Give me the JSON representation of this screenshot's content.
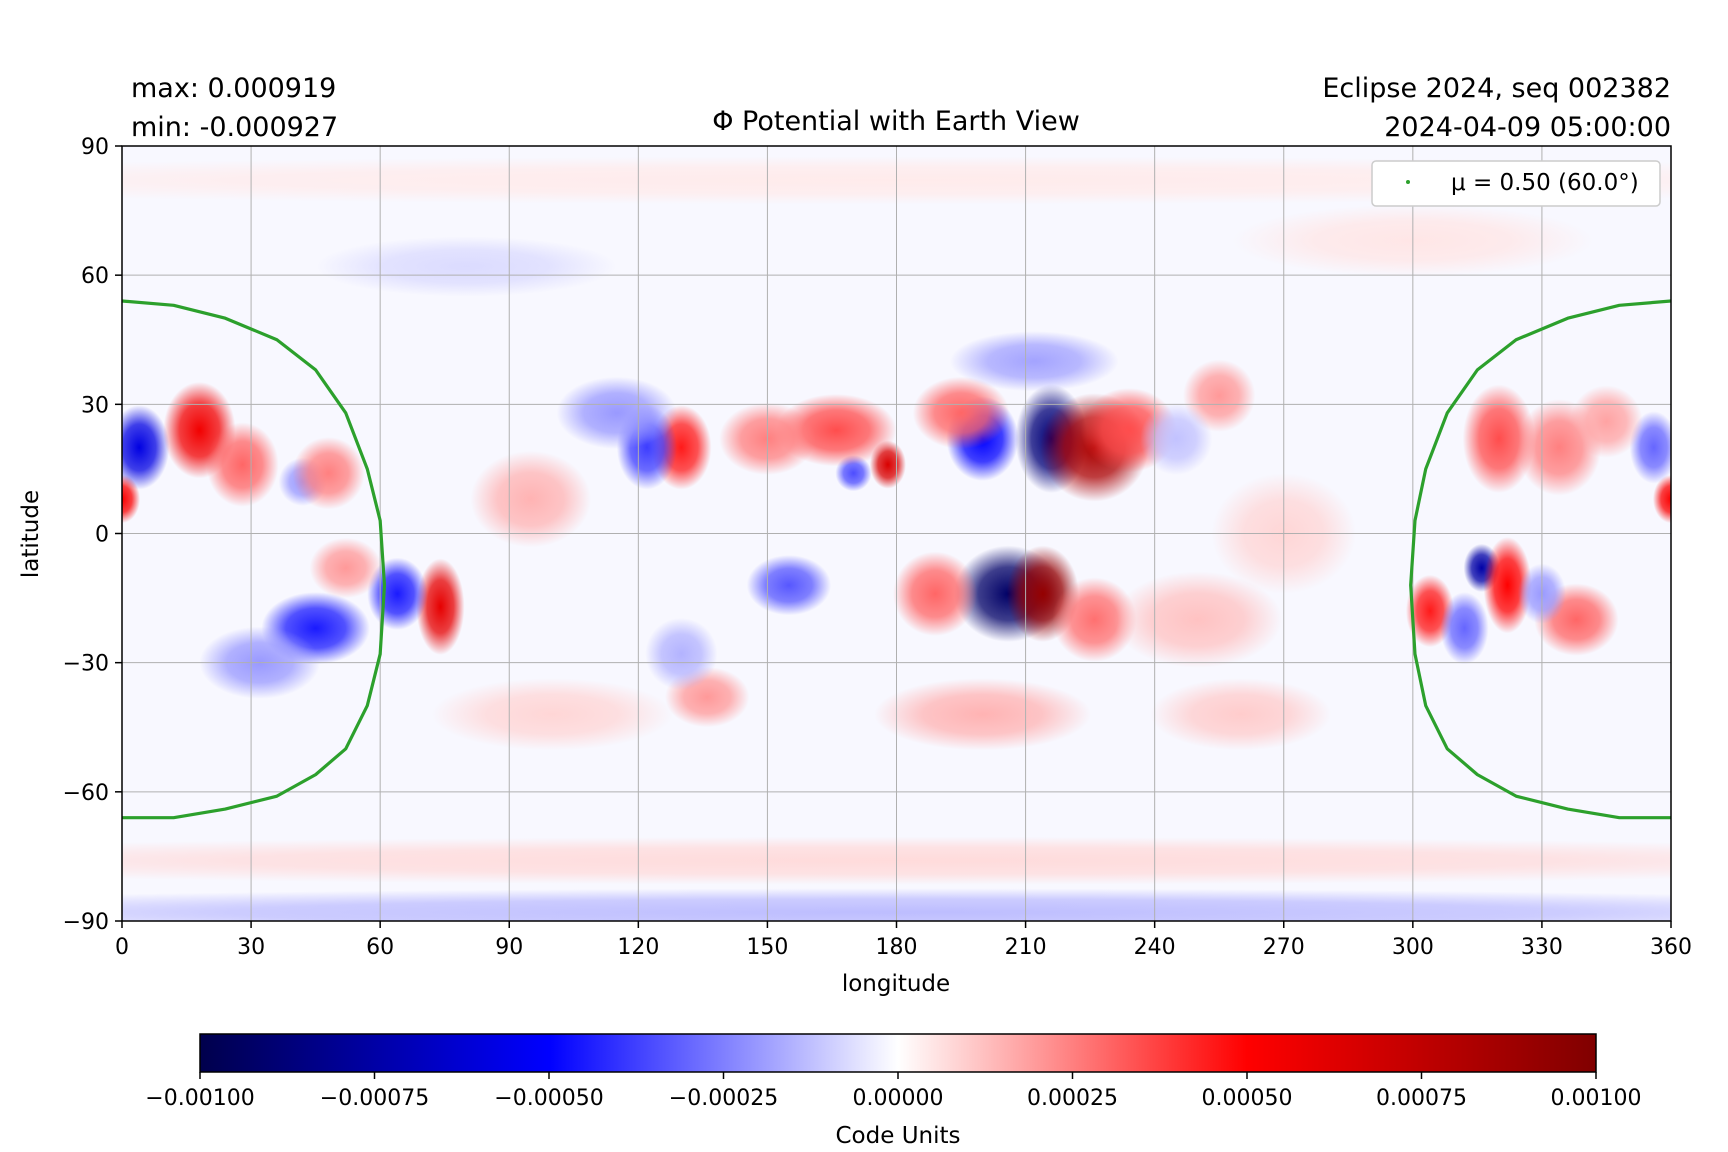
{
  "header": {
    "max_label": "max:  0.000919",
    "min_label": "min:  -0.000927",
    "title": "Φ Potential with Earth View",
    "run_label": "Eclipse 2024, seq 002382",
    "timestamp": "2024-04-09 05:00:00"
  },
  "chart_data": {
    "type": "heatmap",
    "title": "Φ Potential with Earth View",
    "xlabel": "longitude",
    "ylabel": "latitude",
    "xlim": [
      0,
      360
    ],
    "ylim": [
      -90,
      90
    ],
    "xticks": [
      0,
      30,
      60,
      90,
      120,
      150,
      180,
      210,
      240,
      270,
      300,
      330,
      360
    ],
    "yticks": [
      90,
      60,
      30,
      0,
      -30,
      -60,
      -90
    ],
    "ytick_labels": [
      "90",
      "60",
      "30",
      "0",
      "−30",
      "−60",
      "−90"
    ],
    "grid": true,
    "colormap": "seismic",
    "value_range": [
      -0.001,
      0.001
    ],
    "stats": {
      "max": 0.000919,
      "min": -0.000927
    },
    "colorbar": {
      "label": "Code Units",
      "ticks": [
        -0.001,
        -0.00075,
        -0.0005,
        -0.00025,
        0.0,
        0.00025,
        0.0005,
        0.00075,
        0.001
      ],
      "tick_labels": [
        "−0.00100",
        "−0.00075",
        "−0.00050",
        "−0.00025",
        "0.00000",
        "0.00025",
        "0.00050",
        "0.00075",
        "0.00100"
      ]
    },
    "legend": {
      "placement": "top-right",
      "entries": [
        {
          "label": "μ = 0.50 (60.0°)",
          "color": "#2ca02c"
        }
      ]
    },
    "overlay_curves": [
      {
        "name": "μ = 0.50 (60.0°)",
        "color": "#2ca02c",
        "segments": [
          {
            "lon": [
              0,
              12,
              24,
              36,
              45,
              52,
              57,
              60,
              61,
              60,
              57,
              52,
              45,
              36,
              24,
              12,
              0
            ],
            "lat": [
              54,
              53,
              50,
              45,
              38,
              28,
              15,
              3,
              -12,
              -28,
              -40,
              -50,
              -56,
              -61,
              -64,
              -66,
              -66
            ]
          },
          {
            "lon": [
              360,
              348,
              336,
              324,
              315,
              308,
              303,
              300.5,
              299.5,
              300.5,
              303,
              308,
              315,
              324,
              336,
              348,
              360
            ],
            "lat": [
              54,
              53,
              50,
              45,
              38,
              28,
              15,
              3,
              -12,
              -28,
              -40,
              -50,
              -56,
              -61,
              -64,
              -66,
              -66
            ]
          }
        ]
      }
    ],
    "features": [
      {
        "lon": 206,
        "lat": -14,
        "value": -0.000927,
        "sx": 9,
        "sy": 8
      },
      {
        "lon": 214,
        "lat": -14,
        "value": 0.000919,
        "sx": 6,
        "sy": 8
      },
      {
        "lon": 216,
        "lat": 22,
        "value": -0.00088,
        "sx": 6,
        "sy": 9
      },
      {
        "lon": 226,
        "lat": 20,
        "value": 0.00083,
        "sx": 9,
        "sy": 9
      },
      {
        "lon": 200,
        "lat": 22,
        "value": -0.0005,
        "sx": 6,
        "sy": 7
      },
      {
        "lon": 234,
        "lat": 24,
        "value": 0.00035,
        "sx": 8,
        "sy": 7
      },
      {
        "lon": 189,
        "lat": -14,
        "value": 0.0003,
        "sx": 7,
        "sy": 7
      },
      {
        "lon": 226,
        "lat": -20,
        "value": 0.00028,
        "sx": 7,
        "sy": 7
      },
      {
        "lon": 195,
        "lat": 28,
        "value": 0.0003,
        "sx": 8,
        "sy": 6
      },
      {
        "lon": 178,
        "lat": 16,
        "value": 0.00065,
        "sx": 3,
        "sy": 4
      },
      {
        "lon": 170,
        "lat": 14,
        "value": -0.00035,
        "sx": 3,
        "sy": 3
      },
      {
        "lon": 166,
        "lat": 24,
        "value": 0.00035,
        "sx": 10,
        "sy": 6
      },
      {
        "lon": 150,
        "lat": 22,
        "value": 0.00025,
        "sx": 8,
        "sy": 6
      },
      {
        "lon": 130,
        "lat": 20,
        "value": 0.00045,
        "sx": 5,
        "sy": 7
      },
      {
        "lon": 122,
        "lat": 20,
        "value": -0.00038,
        "sx": 5,
        "sy": 7
      },
      {
        "lon": 155,
        "lat": -12,
        "value": -0.00033,
        "sx": 7,
        "sy": 5
      },
      {
        "lon": 136,
        "lat": -38,
        "value": 0.0002,
        "sx": 7,
        "sy": 5
      },
      {
        "lon": 130,
        "lat": -28,
        "value": -0.00015,
        "sx": 6,
        "sy": 6
      },
      {
        "lon": 115,
        "lat": 28,
        "value": -0.0002,
        "sx": 10,
        "sy": 6
      },
      {
        "lon": 95,
        "lat": 8,
        "value": 0.00015,
        "sx": 10,
        "sy": 8
      },
      {
        "lon": 74,
        "lat": -17,
        "value": 0.0006,
        "sx": 4,
        "sy": 8
      },
      {
        "lon": 64,
        "lat": -14,
        "value": -0.00045,
        "sx": 5,
        "sy": 6
      },
      {
        "lon": 45,
        "lat": -22,
        "value": -0.00045,
        "sx": 9,
        "sy": 6
      },
      {
        "lon": 32,
        "lat": -30,
        "value": -0.0002,
        "sx": 10,
        "sy": 6
      },
      {
        "lon": 52,
        "lat": -8,
        "value": 0.0002,
        "sx": 6,
        "sy": 5
      },
      {
        "lon": 4,
        "lat": 20,
        "value": -0.00058,
        "sx": 5,
        "sy": 7
      },
      {
        "lon": 0,
        "lat": 8,
        "value": 0.00052,
        "sx": 3,
        "sy": 4
      },
      {
        "lon": 360,
        "lat": 8,
        "value": 0.00052,
        "sx": 3,
        "sy": 4
      },
      {
        "lon": 18,
        "lat": 24,
        "value": 0.00055,
        "sx": 6,
        "sy": 8
      },
      {
        "lon": 28,
        "lat": 16,
        "value": 0.0003,
        "sx": 6,
        "sy": 7
      },
      {
        "lon": 42,
        "lat": 12,
        "value": -0.0002,
        "sx": 4,
        "sy": 4
      },
      {
        "lon": 48,
        "lat": 14,
        "value": 0.00025,
        "sx": 6,
        "sy": 6
      },
      {
        "lon": 316,
        "lat": -8,
        "value": -0.00075,
        "sx": 3,
        "sy": 4
      },
      {
        "lon": 322,
        "lat": -12,
        "value": 0.0005,
        "sx": 4,
        "sy": 8
      },
      {
        "lon": 304,
        "lat": -18,
        "value": 0.00045,
        "sx": 4,
        "sy": 6
      },
      {
        "lon": 312,
        "lat": -22,
        "value": -0.0003,
        "sx": 4,
        "sy": 6
      },
      {
        "lon": 338,
        "lat": -20,
        "value": 0.0003,
        "sx": 7,
        "sy": 6
      },
      {
        "lon": 330,
        "lat": -14,
        "value": -0.0002,
        "sx": 4,
        "sy": 5
      },
      {
        "lon": 320,
        "lat": 22,
        "value": 0.00035,
        "sx": 6,
        "sy": 9
      },
      {
        "lon": 334,
        "lat": 20,
        "value": 0.00025,
        "sx": 7,
        "sy": 8
      },
      {
        "lon": 356,
        "lat": 20,
        "value": -0.0003,
        "sx": 4,
        "sy": 6
      },
      {
        "lon": 345,
        "lat": 26,
        "value": 0.00018,
        "sx": 6,
        "sy": 6
      },
      {
        "lon": 212,
        "lat": 40,
        "value": -0.00018,
        "sx": 14,
        "sy": 5
      },
      {
        "lon": 255,
        "lat": 32,
        "value": 0.0002,
        "sx": 6,
        "sy": 6
      },
      {
        "lon": 245,
        "lat": 22,
        "value": -0.00012,
        "sx": 6,
        "sy": 6
      },
      {
        "lon": 250,
        "lat": -20,
        "value": 0.00012,
        "sx": 14,
        "sy": 8
      },
      {
        "lon": 200,
        "lat": -42,
        "value": 0.00015,
        "sx": 18,
        "sy": 6
      },
      {
        "lon": 260,
        "lat": -42,
        "value": 0.0001,
        "sx": 15,
        "sy": 6
      },
      {
        "lon": 270,
        "lat": 0,
        "value": 8e-05,
        "sx": 12,
        "sy": 10
      },
      {
        "lon": 100,
        "lat": -42,
        "value": 8e-05,
        "sx": 20,
        "sy": 6
      },
      {
        "lon": 180,
        "lat": -88,
        "value": -0.00013,
        "sx": 200,
        "sy": 4
      },
      {
        "lon": 180,
        "lat": -76,
        "value": 7e-05,
        "sx": 200,
        "sy": 4
      },
      {
        "lon": 80,
        "lat": 62,
        "value": -7e-05,
        "sx": 25,
        "sy": 5
      },
      {
        "lon": 300,
        "lat": 68,
        "value": 5e-05,
        "sx": 30,
        "sy": 6
      },
      {
        "lon": 180,
        "lat": 82,
        "value": 4e-05,
        "sx": 200,
        "sy": 4
      }
    ]
  }
}
